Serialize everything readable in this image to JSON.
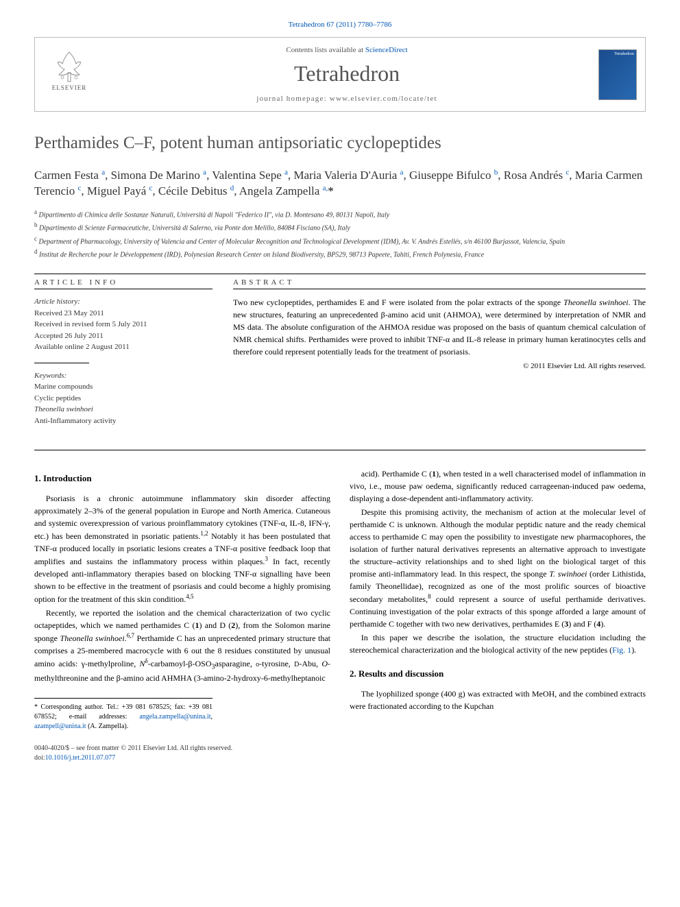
{
  "journal_ref": "Tetrahedron 67 (2011) 7780–7786",
  "header": {
    "publisher": "ELSEVIER",
    "contents_prefix": "Contents lists available at ",
    "contents_link": "ScienceDirect",
    "journal": "Tetrahedron",
    "homepage_label": "journal homepage: www.elsevier.com/locate/tet",
    "cover_label": "Tetrahedron"
  },
  "title": "Perthamides C–F, potent human antipsoriatic cyclopeptides",
  "authors_html": "Carmen Festa <sup>a</sup>, Simona De Marino <sup>a</sup>, Valentina Sepe <sup>a</sup>, Maria Valeria D'Auria <sup>a</sup>, Giuseppe Bifulco <sup>b</sup>, Rosa Andrés <sup>c</sup>, Maria Carmen Terencio <sup>c</sup>, Miguel Payá <sup>c</sup>, Cécile Debitus <sup>d</sup>, Angela Zampella <sup>a,</sup><span class='ast'>*</span>",
  "affiliations": [
    {
      "sup": "a",
      "text": "Dipartimento di Chimica delle Sostanze Naturali, Università di Napoli \"Federico II\", via D. Montesano 49, 80131 Napoli, Italy"
    },
    {
      "sup": "b",
      "text": "Dipartimento di Scienze Farmaceutiche, Università di Salerno, via Ponte don Melillo, 84084 Fisciano (SA), Italy"
    },
    {
      "sup": "c",
      "text": "Department of Pharmacology, University of Valencia and Center of Molecular Recognition and Technological Development (IDM), Av. V. Andrés Estellés, s/n 46100 Burjassot, Valencia, Spain"
    },
    {
      "sup": "d",
      "text": "Institut de Recherche pour le Développement (IRD), Polynesian Research Center on Island Biodiversity, BP529, 98713 Papeete, Tahiti, French Polynesia, France"
    }
  ],
  "info": {
    "label": "ARTICLE INFO",
    "history_label": "Article history:",
    "history": [
      "Received 23 May 2011",
      "Received in revised form 5 July 2011",
      "Accepted 26 July 2011",
      "Available online 2 August 2011"
    ],
    "keywords_label": "Keywords:",
    "keywords": [
      "Marine compounds",
      "Cyclic peptides",
      "Theonella swinhoei",
      "Anti-Inflammatory activity"
    ]
  },
  "abstract": {
    "label": "ABSTRACT",
    "text": "Two new cyclopeptides, perthamides E and F were isolated from the polar extracts of the sponge <span class='italic'>Theonella swinhoei</span>. The new structures, featuring an unprecedented β-amino acid unit (AHMOA), were determined by interpretation of NMR and MS data. The absolute configuration of the AHMOA residue was proposed on the basis of quantum chemical calculation of NMR chemical shifts. Perthamides were proved to inhibit TNF-α and IL-8 release in primary human keratinocytes cells and therefore could represent potentially leads for the treatment of psoriasis.",
    "copyright": "© 2011 Elsevier Ltd. All rights reserved."
  },
  "body": {
    "intro_heading": "1. Introduction",
    "intro_p1": "Psoriasis is a chronic autoimmune inflammatory skin disorder affecting approximately 2–3% of the general population in Europe and North America. Cutaneous and systemic overexpression of various proinflammatory cytokines (TNF-α, IL-8, IFN-γ, etc.) has been demonstrated in psoriatic patients.<sup>1,2</sup> Notably it has been postulated that TNF-α produced locally in psoriatic lesions creates a TNF-α positive feedback loop that amplifies and sustains the inflammatory process within plaques.<sup>3</sup> In fact, recently developed anti-inflammatory therapies based on blocking TNF-α signalling have been shown to be effective in the treatment of psoriasis and could become a highly promising option for the treatment of this skin condition.<sup>4,5</sup>",
    "intro_p2": "Recently, we reported the isolation and the chemical characterization of two cyclic octapeptides, which we named perthamides C (<b>1</b>) and D (<b>2</b>), from the Solomon marine sponge <span class='italic'>Theonella swinhoei</span>.<sup>6,7</sup> Perthamide C has an unprecedented primary structure that comprises a 25-membered macrocycle with 6 out the 8 residues constituted by unusual amino acids: γ-methylproline, <span class='italic'>N</span><sup>δ</sup>-carbamoyl-β-OSO<sub>3</sub>asparagine, <small>o</small>-tyrosine, <small>D</small>-Abu, <span class='italic'>O</span>-methylthreonine and the β-amino acid AHMHA (3-amino-2-hydroxy-6-methylheptanoic",
    "col2_p1": "acid). Perthamide C (<b>1</b>), when tested in a well characterised model of inflammation in vivo, i.e., mouse paw oedema, significantly reduced carrageenan-induced paw oedema, displaying a dose-dependent anti-inflammatory activity.",
    "col2_p2": "Despite this promising activity, the mechanism of action at the molecular level of perthamide C is unknown. Although the modular peptidic nature and the ready chemical access to perthamide C may open the possibility to investigate new pharmacophores, the isolation of further natural derivatives represents an alternative approach to investigate the structure–activity relationships and to shed light on the biological target of this promise anti-inflammatory lead. In this respect, the sponge <span class='italic'>T. swinhoei</span> (order Lithistida, family Theonellidae), recognized as one of the most prolific sources of bioactive secondary metabolites,<sup>8</sup> could represent a source of useful perthamide derivatives. Continuing investigation of the polar extracts of this sponge afforded a large amount of perthamide C together with two new derivatives, perthamides E (<b>3</b>) and F (<b>4</b>).",
    "col2_p3": "In this paper we describe the isolation, the structure elucidation including the stereochemical characterization and the biological activity of the new peptides (<a href='#'>Fig. 1</a>).",
    "results_heading": "2. Results and discussion",
    "results_p1": "The lyophilized sponge (400 g) was extracted with MeOH, and the combined extracts were fractionated according to the Kupchan"
  },
  "footnote": {
    "text": "* Corresponding author. Tel.: +39 081 678525; fax: +39 081 678552; e-mail addresses: ",
    "email1": "angela.zampella@unina.it",
    "sep": ", ",
    "email2": "azampell@unina.it",
    "suffix": " (A. Zampella)."
  },
  "footer": {
    "line1": "0040-4020/$ – see front matter © 2011 Elsevier Ltd. All rights reserved.",
    "doi_label": "doi:",
    "doi": "10.1016/j.tet.2011.07.077"
  }
}
